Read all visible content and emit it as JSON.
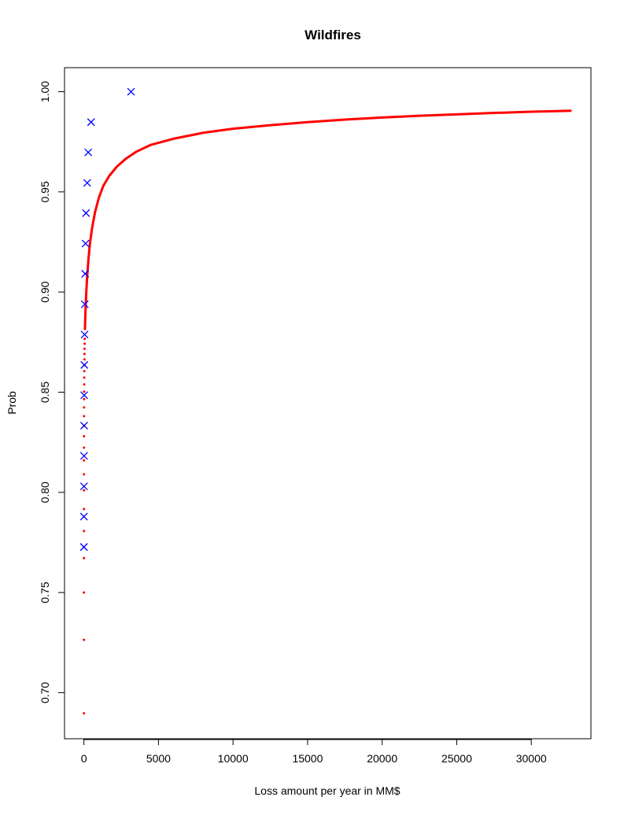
{
  "chart_data": {
    "type": "scatter",
    "title": "Wildfires",
    "xlabel": "Loss amount per year in MM$",
    "ylabel": "Prob",
    "xlim": [
      -1300,
      34000
    ],
    "ylim": [
      0.677,
      1.012
    ],
    "x_ticks": [
      0,
      5000,
      10000,
      15000,
      20000,
      25000,
      30000
    ],
    "x_tick_labels": [
      "0",
      "5000",
      "10000",
      "15000",
      "20000",
      "25000",
      "30000"
    ],
    "y_ticks": [
      0.7,
      0.75,
      0.8,
      0.85,
      0.9,
      0.95,
      1.0
    ],
    "y_tick_labels": [
      "0.70",
      "0.75",
      "0.80",
      "0.85",
      "0.90",
      "0.95",
      "1.00"
    ],
    "grid": false,
    "legend": "none",
    "series": [
      {
        "marker": "cross",
        "color": "#0000ff",
        "points": [
          [
            0,
            0.7727
          ],
          [
            0,
            0.7727
          ],
          [
            0,
            0.7879
          ],
          [
            5,
            0.803
          ],
          [
            10,
            0.8182
          ],
          [
            15,
            0.8333
          ],
          [
            20,
            0.8485
          ],
          [
            30,
            0.8636
          ],
          [
            45,
            0.8788
          ],
          [
            60,
            0.8939
          ],
          [
            85,
            0.9091
          ],
          [
            110,
            0.9242
          ],
          [
            140,
            0.9394
          ],
          [
            220,
            0.9545
          ],
          [
            290,
            0.9697
          ],
          [
            480,
            0.9848
          ],
          [
            3160,
            1.0
          ]
        ]
      },
      {
        "marker": "dot-curve",
        "color": "#ff0000",
        "points": [
          [
            0,
            0.6897
          ],
          [
            0,
            0.7264
          ],
          [
            0,
            0.75
          ],
          [
            1,
            0.7672
          ],
          [
            1,
            0.7807
          ],
          [
            2,
            0.7917
          ],
          [
            2,
            0.801
          ],
          [
            3,
            0.809
          ],
          [
            4,
            0.816
          ],
          [
            5,
            0.8223
          ],
          [
            6,
            0.828
          ],
          [
            8,
            0.8332
          ],
          [
            10,
            0.838
          ],
          [
            12,
            0.8424
          ],
          [
            14,
            0.8465
          ],
          [
            17,
            0.8503
          ],
          [
            20,
            0.8539
          ],
          [
            23,
            0.8573
          ],
          [
            26,
            0.8605
          ],
          [
            30,
            0.8635
          ],
          [
            34,
            0.8664
          ],
          [
            38,
            0.8691
          ],
          [
            43,
            0.8717
          ],
          [
            48,
            0.8742
          ],
          [
            54,
            0.8766
          ],
          [
            70,
            0.8815
          ],
          [
            90,
            0.887
          ],
          [
            120,
            0.8935
          ],
          [
            160,
            0.9
          ],
          [
            220,
            0.908
          ],
          [
            300,
            0.916
          ],
          [
            400,
            0.924
          ],
          [
            550,
            0.932
          ],
          [
            750,
            0.94
          ],
          [
            1000,
            0.947
          ],
          [
            1300,
            0.953
          ],
          [
            1700,
            0.958
          ],
          [
            2200,
            0.9625
          ],
          [
            2800,
            0.9665
          ],
          [
            3500,
            0.97
          ],
          [
            4500,
            0.9735
          ],
          [
            6000,
            0.9765
          ],
          [
            8000,
            0.9795
          ],
          [
            10000,
            0.9815
          ],
          [
            12500,
            0.9833
          ],
          [
            15000,
            0.9848
          ],
          [
            17500,
            0.9861
          ],
          [
            20000,
            0.9871
          ],
          [
            22500,
            0.988
          ],
          [
            25000,
            0.9887
          ],
          [
            27500,
            0.9894
          ],
          [
            30000,
            0.99
          ],
          [
            32700,
            0.9905
          ]
        ]
      }
    ]
  }
}
